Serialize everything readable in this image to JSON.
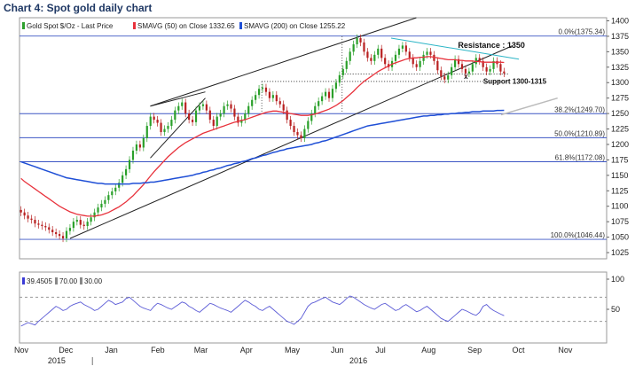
{
  "chart_data": {
    "type": "candlestick-line",
    "title": "Chart 4: Spot gold daily chart",
    "legend": [
      {
        "label": "Gold Spot $/Oz - Last Price",
        "color": "#2ca02c"
      },
      {
        "label": "SMAVG (50) on Close 1332.65",
        "color": "#e8323c"
      },
      {
        "label": "SMAVG (200) on Close 1255.22",
        "color": "#1f4fd6"
      }
    ],
    "price_axis": {
      "ylim": [
        1015,
        1405
      ],
      "ticks": [
        "1400",
        "1375",
        "1350",
        "1325",
        "1300",
        "1275",
        "1250",
        "1225",
        "1200",
        "1175",
        "1150",
        "1125",
        "1100",
        "1075",
        "1050",
        "1025"
      ]
    },
    "rsi_axis": {
      "ylim": [
        0,
        100
      ],
      "ticks": [
        "100",
        "50"
      ],
      "legend": [
        {
          "label": "39.4505",
          "color": "#3b3bd6"
        },
        {
          "label": "70.00",
          "color": "#888888"
        },
        {
          "label": "30.00",
          "color": "#888888"
        }
      ]
    },
    "x_axis": {
      "start": "2015-11-01",
      "end": "2016-11-30",
      "months": [
        "Nov",
        "Dec",
        "Jan",
        "Feb",
        "Mar",
        "Apr",
        "May",
        "Jun",
        "Jul",
        "Aug",
        "Sep",
        "Oct",
        "Nov"
      ],
      "years": [
        "2015",
        "2016"
      ]
    },
    "fibonacci": [
      {
        "label": "0.0%(1375.34)",
        "value": 1375.34
      },
      {
        "label": "38.2%(1249.70)",
        "value": 1249.7
      },
      {
        "label": "50.0%(1210.89)",
        "value": 1210.89
      },
      {
        "label": "61.8%(1172.08)",
        "value": 1172.08
      },
      {
        "label": "100.0%(1046.44)",
        "value": 1046.44
      }
    ],
    "annotations": {
      "resistance": "Resistance : 1350",
      "support": "Support 1300-1315",
      "marker": "x"
    },
    "price_close": [
      1090,
      1085,
      1080,
      1078,
      1072,
      1070,
      1068,
      1066,
      1062,
      1058,
      1055,
      1052,
      1048,
      1060,
      1065,
      1075,
      1078,
      1070,
      1068,
      1075,
      1082,
      1090,
      1098,
      1104,
      1110,
      1118,
      1124,
      1130,
      1138,
      1150,
      1160,
      1175,
      1190,
      1200,
      1195,
      1210,
      1230,
      1245,
      1240,
      1235,
      1220,
      1225,
      1230,
      1240,
      1255,
      1262,
      1268,
      1250,
      1240,
      1236,
      1255,
      1262,
      1265,
      1255,
      1240,
      1230,
      1245,
      1250,
      1262,
      1265,
      1258,
      1245,
      1235,
      1240,
      1250,
      1262,
      1272,
      1280,
      1290,
      1292,
      1285,
      1275,
      1280,
      1270,
      1265,
      1255,
      1240,
      1230,
      1220,
      1215,
      1210,
      1225,
      1238,
      1250,
      1262,
      1270,
      1278,
      1285,
      1275,
      1290,
      1300,
      1312,
      1322,
      1335,
      1350,
      1362,
      1372,
      1365,
      1350,
      1340,
      1335,
      1345,
      1355,
      1340,
      1330,
      1325,
      1335,
      1345,
      1355,
      1360,
      1350,
      1340,
      1330,
      1325,
      1335,
      1345,
      1350,
      1345,
      1335,
      1320,
      1310,
      1305,
      1312,
      1325,
      1338,
      1330,
      1322,
      1315,
      1318,
      1330,
      1340,
      1335,
      1325,
      1318,
      1322,
      1335,
      1330,
      1318,
      1315
    ],
    "sma50": [
      1145,
      1140,
      1136,
      1132,
      1128,
      1124,
      1120,
      1116,
      1112,
      1108,
      1104,
      1100,
      1097,
      1094,
      1091,
      1089,
      1087,
      1086,
      1085,
      1084,
      1084,
      1084,
      1085,
      1086,
      1088,
      1090,
      1093,
      1096,
      1099,
      1103,
      1107,
      1112,
      1117,
      1123,
      1129,
      1135,
      1142,
      1149,
      1156,
      1162,
      1168,
      1174,
      1180,
      1185,
      1190,
      1195,
      1199,
      1203,
      1206,
      1209,
      1212,
      1215,
      1218,
      1220,
      1222,
      1224,
      1226,
      1228,
      1230,
      1232,
      1234,
      1236,
      1237,
      1239,
      1240,
      1242,
      1244,
      1246,
      1248,
      1250,
      1252,
      1253,
      1254,
      1254,
      1253,
      1252,
      1251,
      1250,
      1249,
      1248,
      1247,
      1247,
      1247,
      1248,
      1249,
      1251,
      1253,
      1255,
      1257,
      1260,
      1263,
      1267,
      1271,
      1276,
      1281,
      1286,
      1292,
      1297,
      1302,
      1306,
      1310,
      1314,
      1318,
      1321,
      1324,
      1327,
      1330,
      1332,
      1334,
      1336,
      1338,
      1339,
      1340,
      1340,
      1341,
      1341,
      1342,
      1342,
      1341,
      1340,
      1339,
      1338,
      1337,
      1337,
      1337,
      1336,
      1336,
      1335,
      1335,
      1335,
      1334,
      1334,
      1333,
      1333,
      1333,
      1333,
      1333,
      1333,
      1332.65
    ],
    "sma200": [
      1172,
      1170,
      1168,
      1166,
      1164,
      1162,
      1160,
      1158,
      1156,
      1154,
      1152,
      1150,
      1148,
      1146,
      1145,
      1144,
      1143,
      1142,
      1141,
      1140,
      1139,
      1138,
      1137,
      1137,
      1136,
      1136,
      1136,
      1136,
      1136,
      1136,
      1136,
      1136,
      1137,
      1137,
      1137,
      1138,
      1138,
      1139,
      1139,
      1140,
      1141,
      1142,
      1143,
      1144,
      1145,
      1146,
      1147,
      1148,
      1149,
      1150,
      1152,
      1153,
      1155,
      1156,
      1158,
      1159,
      1161,
      1162,
      1164,
      1166,
      1167,
      1169,
      1170,
      1172,
      1173,
      1175,
      1177,
      1178,
      1180,
      1182,
      1183,
      1185,
      1187,
      1188,
      1190,
      1191,
      1193,
      1194,
      1195,
      1196,
      1197,
      1198,
      1199,
      1200,
      1202,
      1203,
      1205,
      1206,
      1208,
      1210,
      1212,
      1214,
      1216,
      1218,
      1220,
      1222,
      1224,
      1226,
      1228,
      1230,
      1231,
      1232,
      1233,
      1234,
      1235,
      1236,
      1237,
      1238,
      1239,
      1240,
      1241,
      1242,
      1243,
      1244,
      1245,
      1246,
      1246,
      1247,
      1247,
      1248,
      1248,
      1249,
      1249,
      1250,
      1250,
      1251,
      1251,
      1252,
      1252,
      1253,
      1253,
      1253,
      1254,
      1254,
      1254,
      1254,
      1255,
      1255,
      1255.22
    ],
    "rsi": [
      22,
      25,
      28,
      26,
      24,
      30,
      35,
      40,
      45,
      50,
      55,
      52,
      48,
      50,
      55,
      58,
      60,
      62,
      58,
      55,
      52,
      48,
      50,
      55,
      60,
      65,
      62,
      58,
      60,
      62,
      68,
      70,
      65,
      60,
      55,
      52,
      50,
      48,
      55,
      60,
      58,
      55,
      52,
      50,
      54,
      58,
      62,
      60,
      55,
      52,
      48,
      45,
      50,
      55,
      60,
      58,
      55,
      52,
      50,
      48,
      45,
      50,
      55,
      60,
      65,
      62,
      58,
      55,
      50,
      48,
      52,
      55,
      50,
      45,
      40,
      35,
      30,
      28,
      25,
      30,
      35,
      45,
      55,
      60,
      62,
      65,
      68,
      70,
      66,
      62,
      60,
      58,
      62,
      68,
      72,
      70,
      66,
      62,
      58,
      55,
      52,
      50,
      54,
      58,
      60,
      56,
      52,
      48,
      50,
      55,
      58,
      54,
      50,
      46,
      48,
      52,
      55,
      50,
      45,
      40,
      35,
      32,
      30,
      35,
      40,
      45,
      50,
      48,
      45,
      42,
      40,
      45,
      55,
      58,
      52,
      48,
      45,
      42,
      39.45
    ]
  }
}
